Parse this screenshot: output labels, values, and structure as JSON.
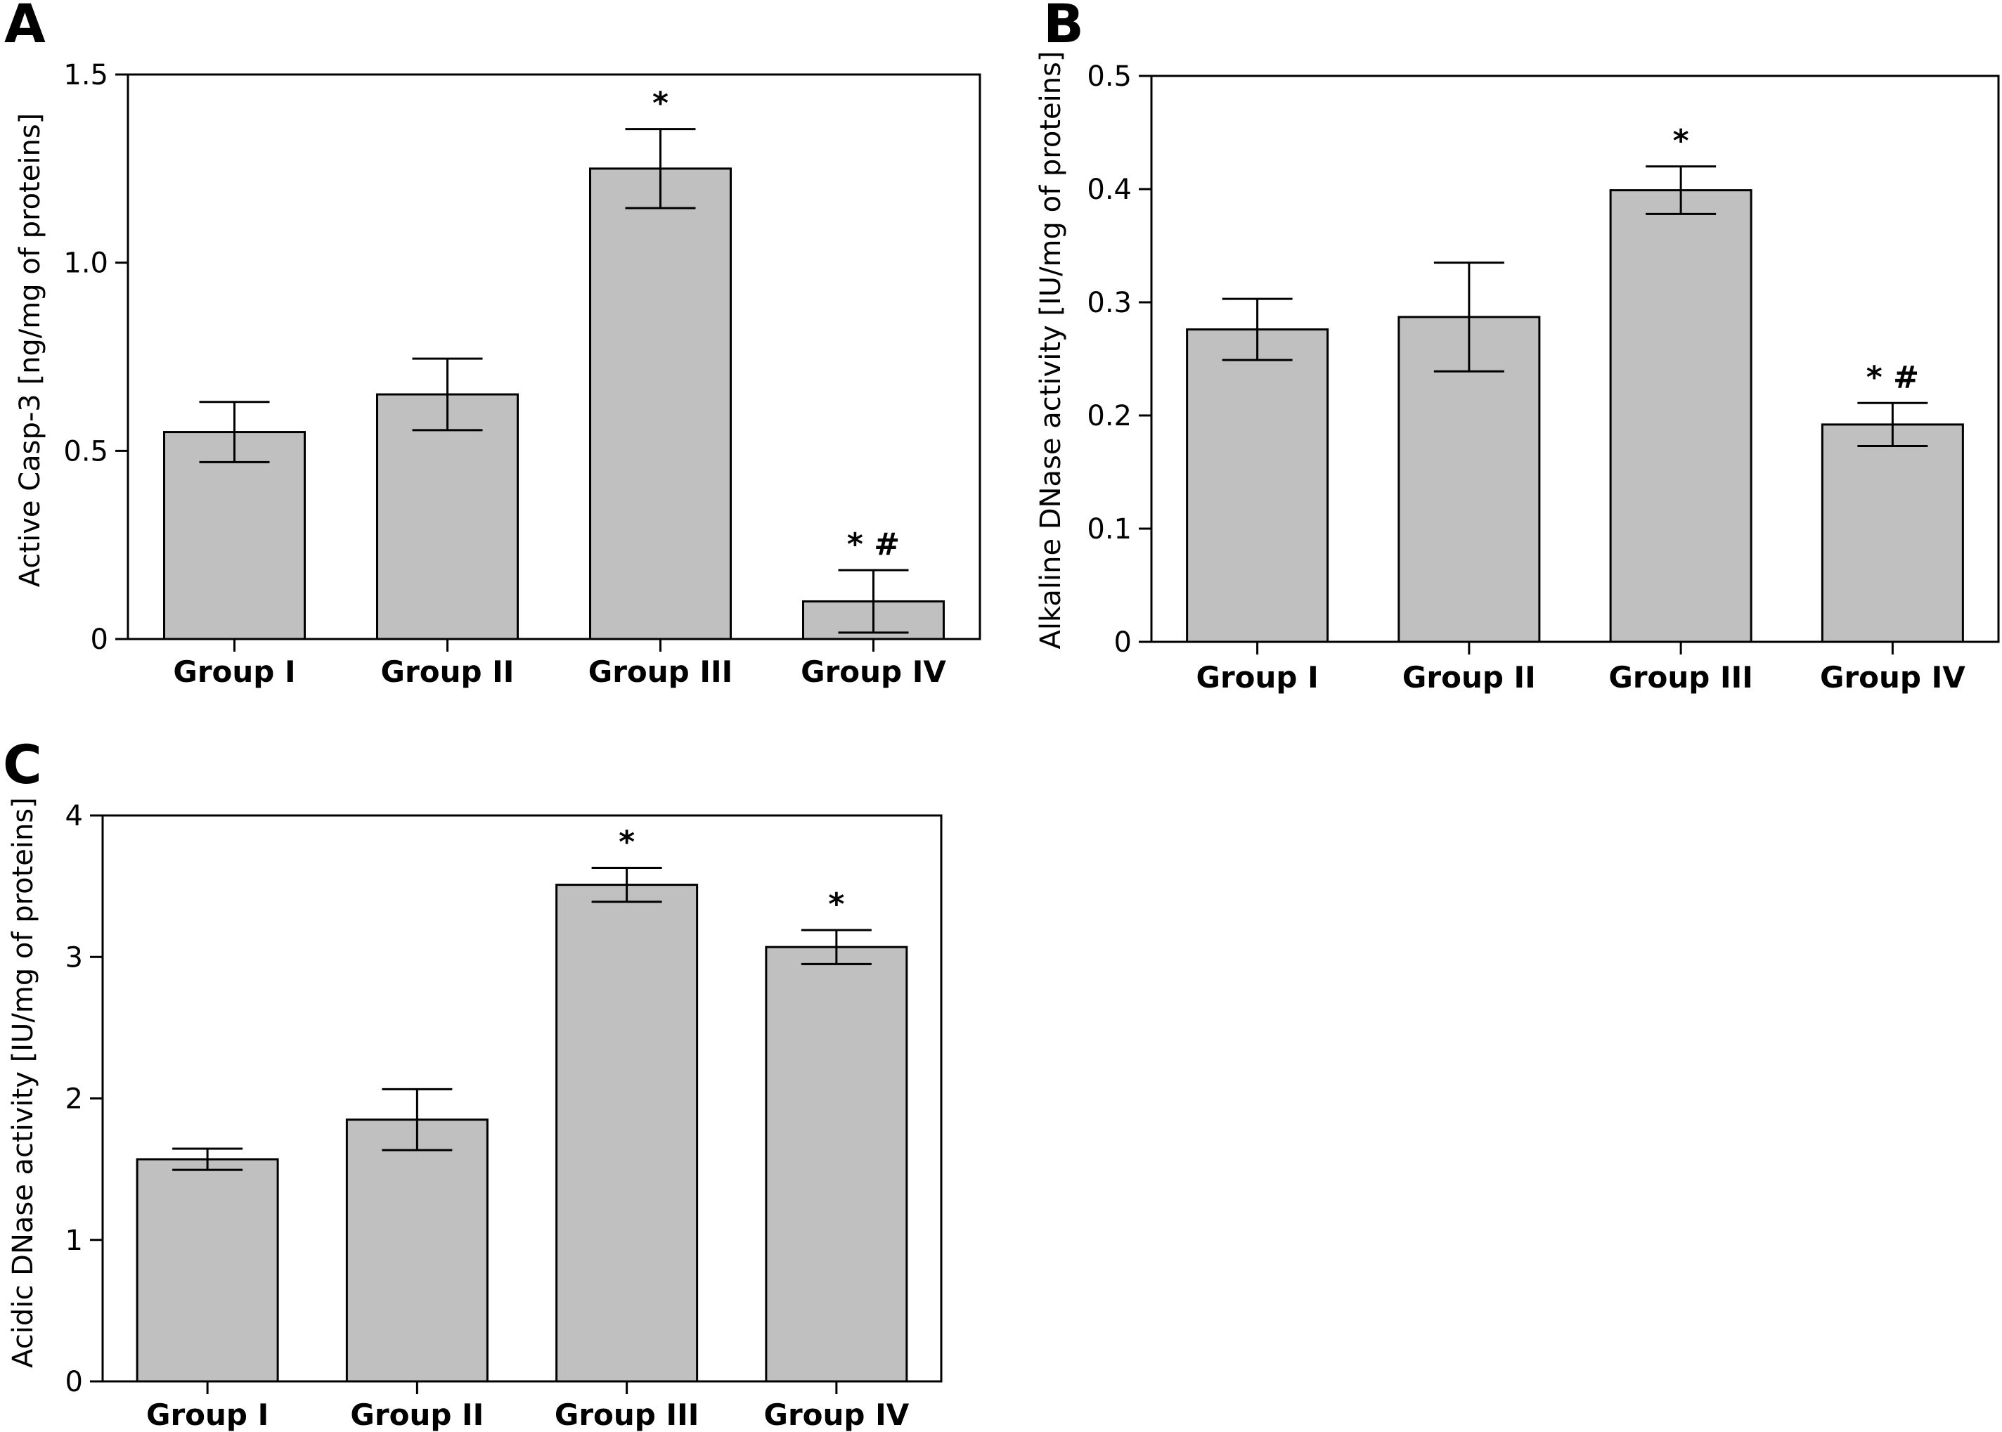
{
  "chart_data": [
    {
      "id": "A",
      "type": "bar",
      "panel_label": "A",
      "ylabel": "Active Casp-3 [ng/mg of proteins]",
      "xlabel": "",
      "ylim": [
        0,
        1.5
      ],
      "yticks": [
        {
          "value": 0,
          "label": "0"
        },
        {
          "value": 0.5,
          "label": "0.5"
        },
        {
          "value": 1.0,
          "label": "1.0"
        },
        {
          "value": 1.5,
          "label": "1.5"
        }
      ],
      "categories": [
        "Group I",
        "Group II",
        "Group III",
        "Group IV"
      ],
      "values": [
        0.55,
        0.65,
        1.25,
        0.1
      ],
      "errors": [
        0.08,
        0.095,
        0.105,
        0.083
      ],
      "annotations": [
        "",
        "",
        "*",
        "* #"
      ],
      "bar_color": "#c0c0c0",
      "grid": false,
      "legend": "none"
    },
    {
      "id": "B",
      "type": "bar",
      "panel_label": "B",
      "ylabel": "Alkaline DNase activity [IU/mg of proteins]",
      "xlabel": "",
      "ylim": [
        0,
        0.5
      ],
      "yticks": [
        {
          "value": 0,
          "label": "0"
        },
        {
          "value": 0.1,
          "label": "0.1"
        },
        {
          "value": 0.2,
          "label": "0.2"
        },
        {
          "value": 0.3,
          "label": "0.3"
        },
        {
          "value": 0.4,
          "label": "0.4"
        },
        {
          "value": 0.5,
          "label": "0.5"
        }
      ],
      "categories": [
        "Group I",
        "Group II",
        "Group III",
        "Group IV"
      ],
      "values": [
        0.276,
        0.287,
        0.399,
        0.192
      ],
      "errors": [
        0.027,
        0.048,
        0.021,
        0.019
      ],
      "annotations": [
        "",
        "",
        "*",
        "* #"
      ],
      "bar_color": "#c0c0c0",
      "grid": false,
      "legend": "none"
    },
    {
      "id": "C",
      "type": "bar",
      "panel_label": "C",
      "ylabel": "Acidic DNase activity [IU/mg of proteins]",
      "xlabel": "",
      "ylim": [
        0,
        4
      ],
      "yticks": [
        {
          "value": 0,
          "label": "0"
        },
        {
          "value": 1,
          "label": "1"
        },
        {
          "value": 2,
          "label": "2"
        },
        {
          "value": 3,
          "label": "3"
        },
        {
          "value": 4,
          "label": "4"
        }
      ],
      "categories": [
        "Group I",
        "Group II",
        "Group III",
        "Group IV"
      ],
      "values": [
        1.57,
        1.85,
        3.51,
        3.07
      ],
      "errors": [
        0.075,
        0.215,
        0.12,
        0.12
      ],
      "annotations": [
        "",
        "",
        "*",
        "*"
      ],
      "bar_color": "#c0c0c0",
      "grid": false,
      "legend": "none"
    }
  ]
}
